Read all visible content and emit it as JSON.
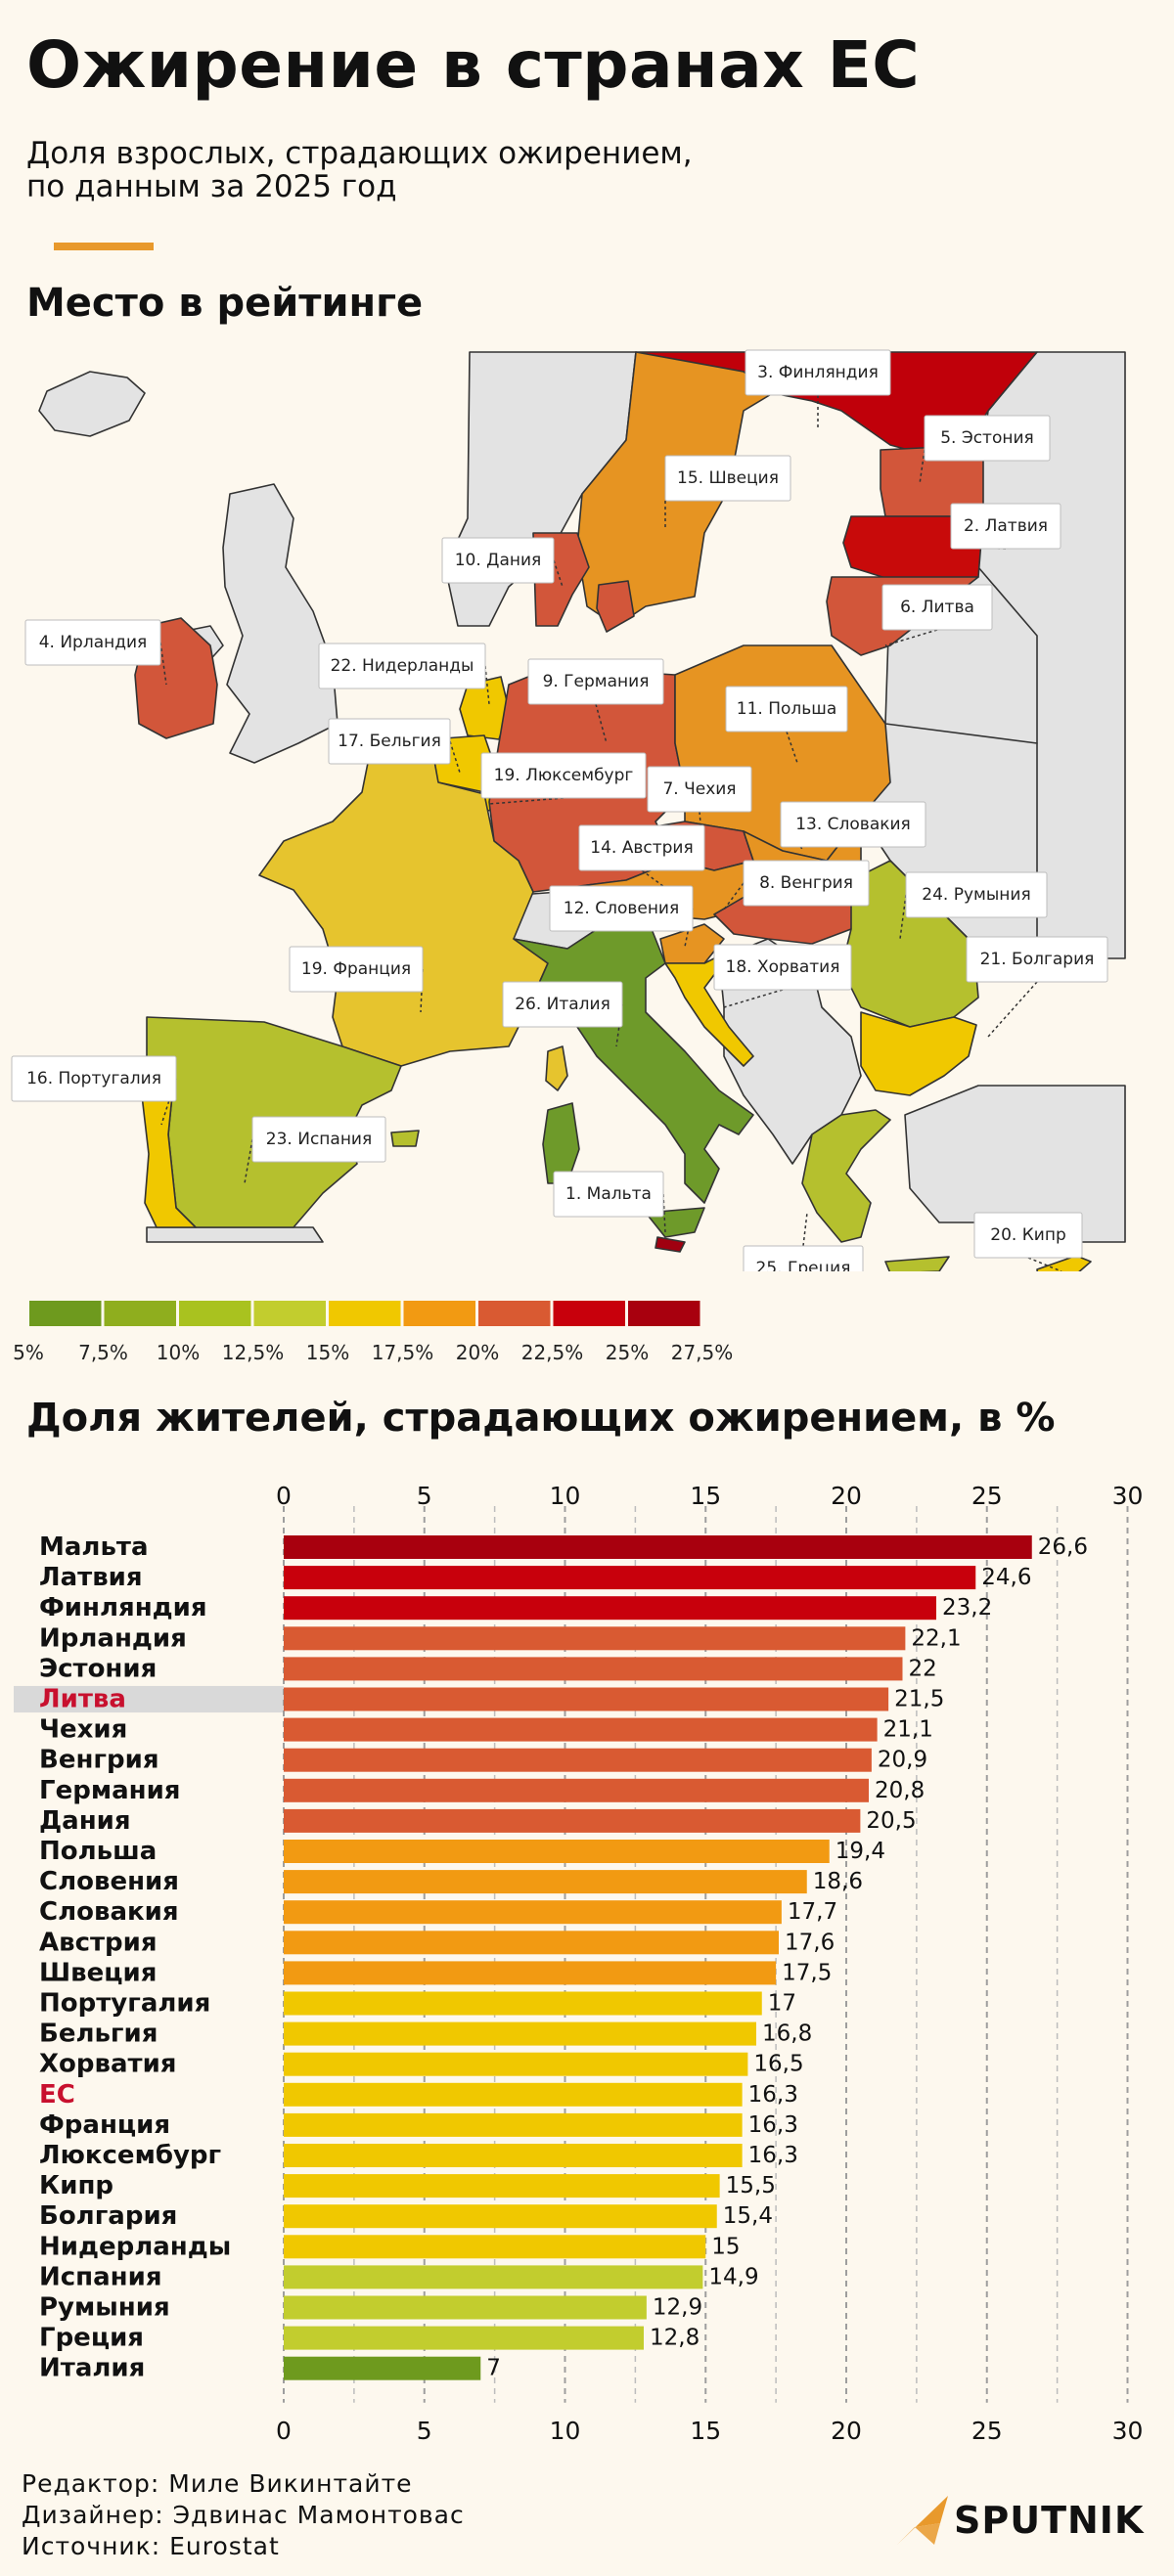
{
  "header": {
    "title": "Ожирение в странах ЕС",
    "subtitle_line1": "Доля взрослых, страдающих ожирением,",
    "subtitle_line2": "по данным за 2025 год"
  },
  "map_section": {
    "title": "Место в рейтинге",
    "labels": [
      {
        "text": "3. Финляндия",
        "color": "#c0000a"
      },
      {
        "text": "5. Эстония",
        "color": "#d2563a"
      },
      {
        "text": "15. Швеция",
        "color": "#e69422"
      },
      {
        "text": "2. Латвия",
        "color": "#c80a0a"
      },
      {
        "text": "10. Дания",
        "color": "#d2563a"
      },
      {
        "text": "6. Литва",
        "color": "#d2563a"
      },
      {
        "text": "4. Ирландия",
        "color": "#d2563a"
      },
      {
        "text": "22. Нидерланды",
        "color": "#f0c800"
      },
      {
        "text": "9. Германия",
        "color": "#d2563a"
      },
      {
        "text": "11. Польша",
        "color": "#e69422"
      },
      {
        "text": "17. Бельгия",
        "color": "#f0c800"
      },
      {
        "text": "19. Люксембург",
        "color": "#f0c800"
      },
      {
        "text": "7. Чехия",
        "color": "#d2563a"
      },
      {
        "text": "13. Словакия",
        "color": "#e69422"
      },
      {
        "text": "14. Австрия",
        "color": "#e69422"
      },
      {
        "text": "8. Венгрия",
        "color": "#d2563a"
      },
      {
        "text": "24. Румыния",
        "color": "#b5c02e"
      },
      {
        "text": "12. Словения",
        "color": "#e69422"
      },
      {
        "text": "21. Болгария",
        "color": "#f0c800"
      },
      {
        "text": "18. Хорватия",
        "color": "#f0c800"
      },
      {
        "text": "19. Франция",
        "color": "#e6c42e"
      },
      {
        "text": "26. Италия",
        "color": "#6e9a2a"
      },
      {
        "text": "16. Португалия",
        "color": "#f0c800"
      },
      {
        "text": "23. Испания",
        "color": "#b5c02e"
      },
      {
        "text": "1. Мальта",
        "color": "#a00010"
      },
      {
        "text": "20. Кипр",
        "color": "#f0c800"
      },
      {
        "text": "25. Греция",
        "color": "#b5c02e"
      }
    ],
    "legend": {
      "ticks": [
        "5%",
        "7,5%",
        "10%",
        "12,5%",
        "15%",
        "17,5%",
        "20%",
        "22,5%",
        "25%",
        "27,5%"
      ],
      "colors": [
        "#6e9a1e",
        "#8fae1e",
        "#a9c21f",
        "#c2cd2e",
        "#f0c800",
        "#f29a12",
        "#d95a32",
        "#c8000c",
        "#a8000e"
      ]
    }
  },
  "bar_section": {
    "title": "Доля жителей, страдающих ожирением, в %",
    "highlight_color": "#c8102e"
  },
  "chart_data": {
    "type": "bar",
    "orientation": "horizontal",
    "title": "Доля жителей, страдающих ожирением, в %",
    "xlim": [
      0,
      30
    ],
    "xticks": [
      0,
      5,
      10,
      15,
      20,
      25,
      30
    ],
    "grid": true,
    "highlighted": [
      "Литва",
      "ЕС"
    ],
    "categories": [
      "Мальта",
      "Латвия",
      "Финляндия",
      "Ирландия",
      "Эстония",
      "Литва",
      "Чехия",
      "Венгрия",
      "Германия",
      "Дания",
      "Польша",
      "Словения",
      "Словакия",
      "Австрия",
      "Швеция",
      "Португалия",
      "Бельгия",
      "Хорватия",
      "ЕС",
      "Франция",
      "Люксембург",
      "Кипр",
      "Болгария",
      "Нидерланды",
      "Испания",
      "Румыния",
      "Греция",
      "Италия"
    ],
    "values": [
      26.6,
      24.6,
      23.2,
      22.1,
      22,
      21.5,
      21.1,
      20.9,
      20.8,
      20.5,
      19.4,
      18.6,
      17.7,
      17.6,
      17.5,
      17,
      16.8,
      16.5,
      16.3,
      16.3,
      16.3,
      15.5,
      15.4,
      15,
      14.9,
      12.9,
      12.8,
      7
    ],
    "value_labels": [
      "26,6",
      "24,6",
      "23,2",
      "22,1",
      "22",
      "21,5",
      "21,1",
      "20,9",
      "20,8",
      "20,5",
      "19,4",
      "18,6",
      "17,7",
      "17,6",
      "17,5",
      "17",
      "16,8",
      "16,5",
      "16,3",
      "16,3",
      "16,3",
      "15,5",
      "15,4",
      "15",
      "14,9",
      "12,9",
      "12,8",
      "7"
    ],
    "colors": [
      "#a8000e",
      "#c8000c",
      "#c8000c",
      "#d95a32",
      "#d95a32",
      "#d95a32",
      "#d95a32",
      "#d95a32",
      "#d95a32",
      "#d95a32",
      "#f29a12",
      "#f29a12",
      "#f29a12",
      "#f29a12",
      "#f29a12",
      "#f0c800",
      "#f0c800",
      "#f0c800",
      "#f0c800",
      "#f0c800",
      "#f0c800",
      "#f0c800",
      "#f0c800",
      "#f0c800",
      "#c2cd2e",
      "#c2cd2e",
      "#c2cd2e",
      "#6e9a1e"
    ]
  },
  "footer": {
    "editor": "Редактор: Миле Викинтайте",
    "designer": "Дизайнер: Эдвинас Мамонтовас",
    "source": "Источник: Eurostat",
    "brand": "SPUTNIK"
  }
}
